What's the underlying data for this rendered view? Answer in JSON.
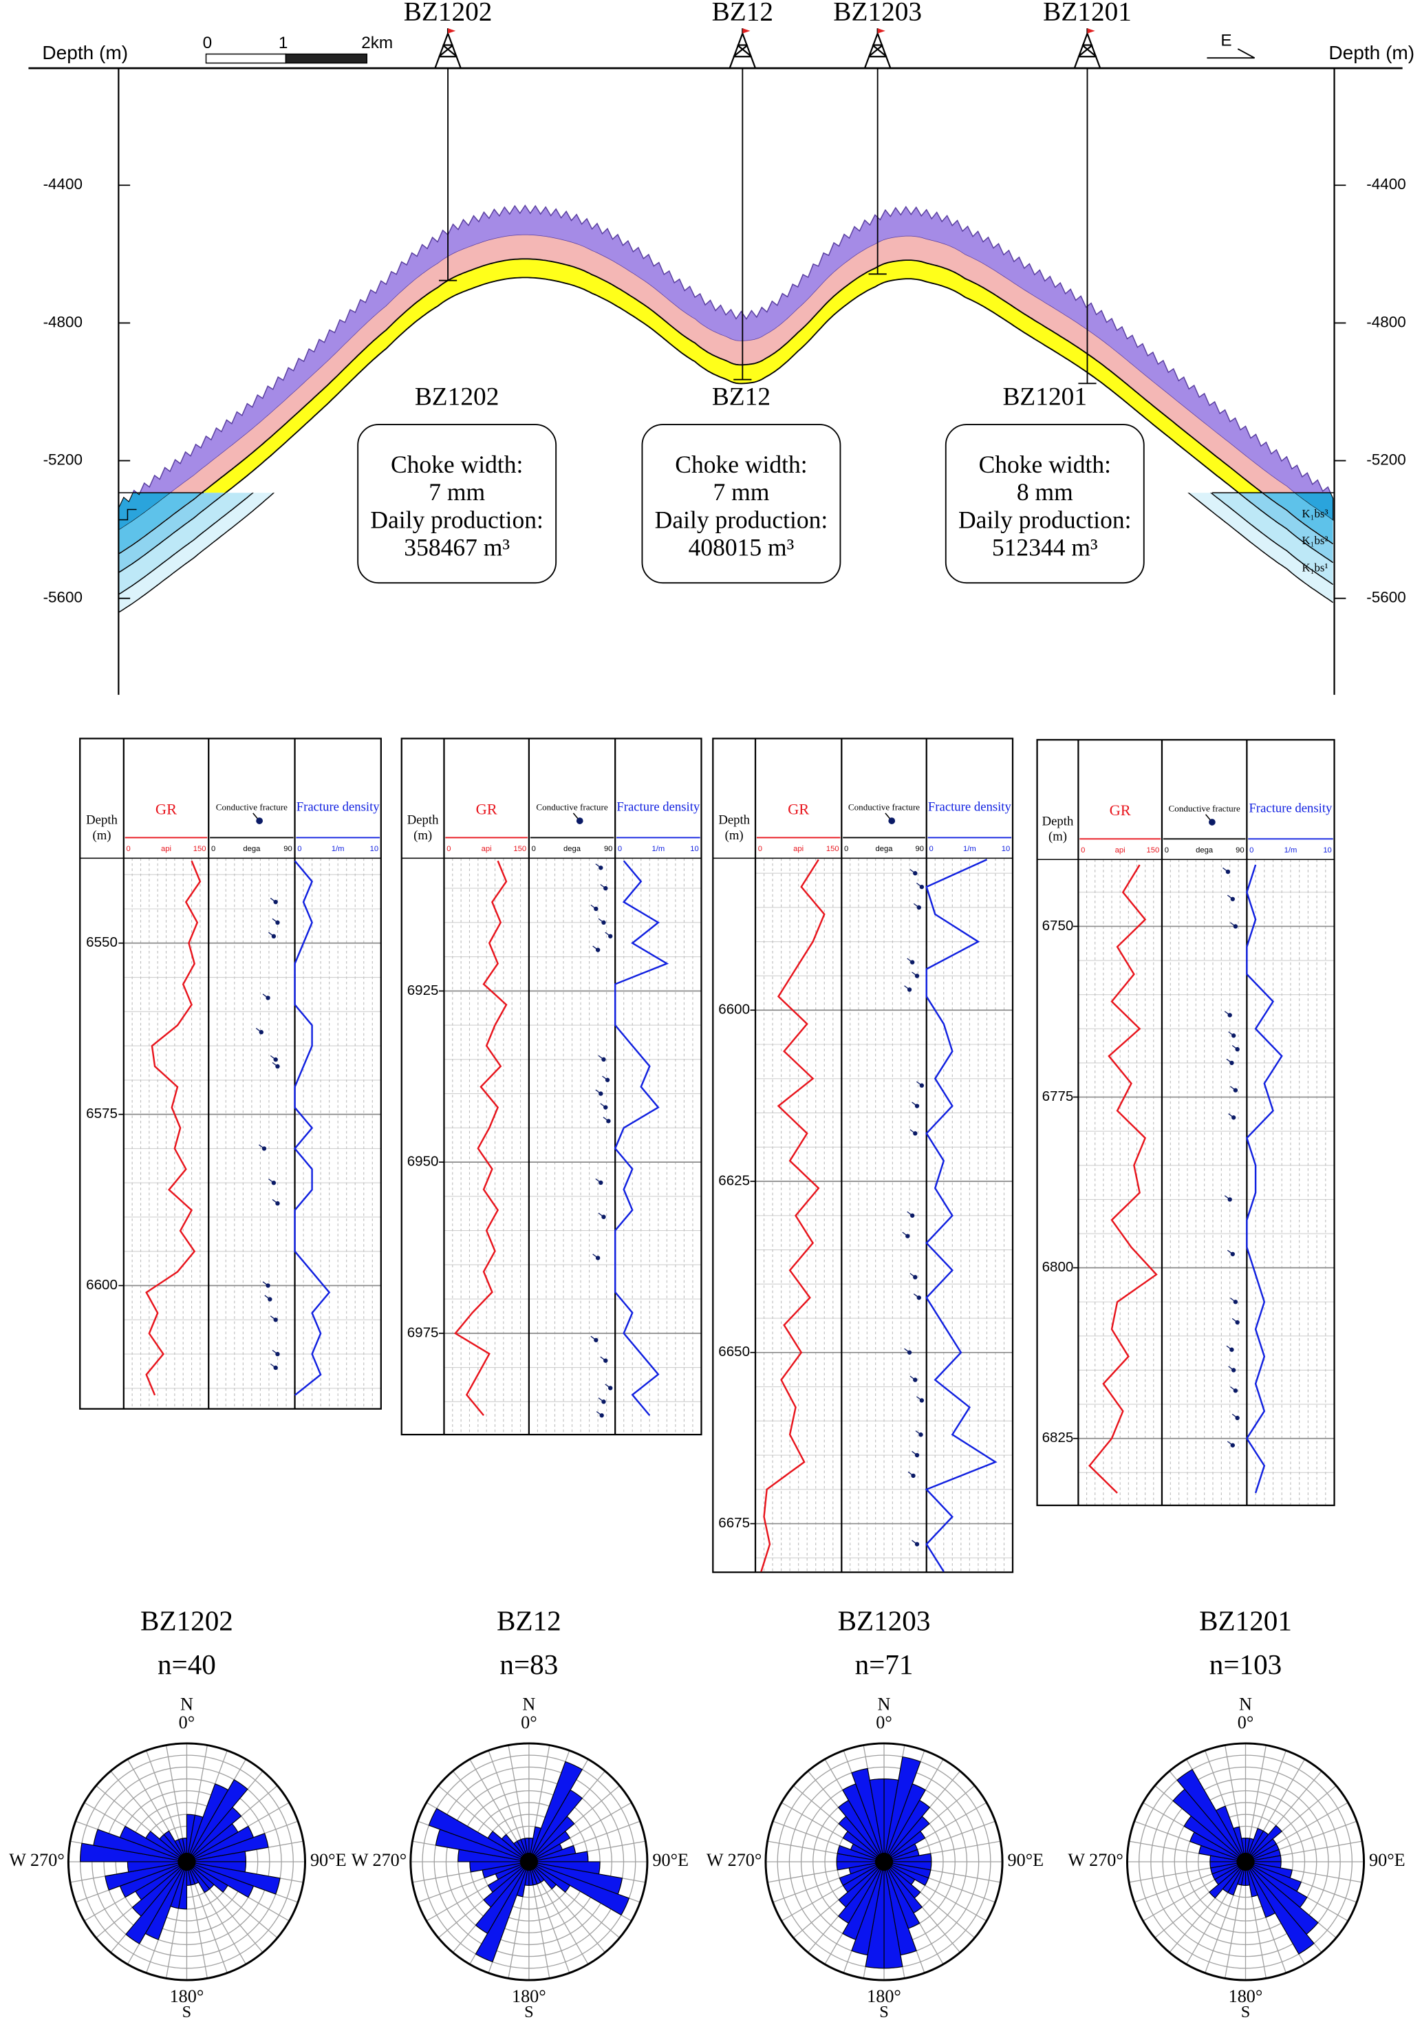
{
  "section": {
    "depth_label": "Depth (m)",
    "scale_labels": [
      "0",
      "1",
      "2km"
    ],
    "direction": "E",
    "wells": [
      "BZ1202",
      "BZ12",
      "BZ1203",
      "BZ1201"
    ],
    "ylim": [
      -4060,
      -5880
    ],
    "yticks": [
      -4400,
      -4800,
      -5200,
      -5600
    ],
    "layer_labels": [
      "K₁bs³",
      "K₁bs²",
      "K₁bs¹"
    ],
    "boxes": [
      {
        "well": "BZ1202",
        "choke_label": "Choke width:",
        "choke": "7 mm",
        "production_label": "Daily production:",
        "production": "358467 m³"
      },
      {
        "well": "BZ12",
        "choke_label": "Choke width:",
        "choke": "7 mm",
        "production_label": "Daily production:",
        "production": "408015 m³"
      },
      {
        "well": "BZ1201",
        "choke_label": "Choke width:",
        "choke": "8 mm",
        "production_label": "Daily production:",
        "production": "512344 m³"
      }
    ]
  },
  "log_header": {
    "depth": [
      "Depth",
      "(m)"
    ],
    "gr": "GR",
    "gr_unit": "api",
    "gr_range": [
      0,
      150
    ],
    "fracture": "Conductive fracture",
    "dip_unit": "dega",
    "dip_range": [
      0,
      90
    ],
    "density": "Fracture density",
    "density_unit": "1/m",
    "density_range": [
      0,
      10
    ]
  },
  "logs": [
    {
      "ylim": [
        6537.6,
        6618
      ],
      "yticks": [
        6550,
        6575,
        6600
      ],
      "depth": [
        6538,
        6541,
        6544,
        6547,
        6550,
        6553,
        6556,
        6559,
        6562,
        6565,
        6568,
        6571,
        6574,
        6577,
        6580,
        6583,
        6586,
        6589,
        6592,
        6595,
        6598,
        6601,
        6604,
        6607,
        6610,
        6613,
        6616
      ],
      "gr": [
        120,
        135,
        110,
        130,
        115,
        125,
        105,
        120,
        95,
        50,
        55,
        95,
        85,
        100,
        90,
        110,
        80,
        120,
        100,
        125,
        95,
        40,
        60,
        45,
        70,
        40,
        55
      ],
      "fracture_density": [
        0,
        2,
        1,
        2,
        1,
        0,
        0,
        0,
        2,
        2,
        1,
        0,
        0,
        2,
        0,
        2,
        2,
        0,
        0,
        0,
        2,
        4,
        2,
        3,
        2,
        3,
        0
      ],
      "fractures": {
        "depth": [
          6544,
          6547,
          6549,
          6558,
          6563,
          6567,
          6568,
          6580,
          6585,
          6588,
          6600,
          6602,
          6605,
          6610,
          6612
        ],
        "dip": [
          70,
          72,
          68,
          62,
          55,
          70,
          72,
          58,
          68,
          72,
          62,
          64,
          70,
          72,
          70
        ]
      }
    },
    {
      "ylim": [
        6905.6,
        6989.8
      ],
      "yticks": [
        6925,
        6950,
        6975
      ],
      "depth": [
        6906,
        6909,
        6912,
        6915,
        6918,
        6921,
        6924,
        6927,
        6930,
        6933,
        6936,
        6939,
        6942,
        6945,
        6948,
        6951,
        6954,
        6957,
        6960,
        6963,
        6966,
        6969,
        6972,
        6975,
        6978,
        6981,
        6984,
        6987
      ],
      "gr": [
        95,
        110,
        85,
        100,
        80,
        95,
        70,
        110,
        90,
        75,
        100,
        65,
        95,
        80,
        60,
        85,
        70,
        95,
        75,
        90,
        70,
        85,
        50,
        20,
        80,
        60,
        40,
        70
      ],
      "fracture_density": [
        1,
        3,
        1,
        5,
        2,
        6,
        0,
        0,
        0,
        2,
        4,
        3,
        5,
        1,
        0,
        2,
        1,
        2,
        0,
        0,
        0,
        0,
        2,
        1,
        3,
        5,
        2,
        4
      ],
      "fractures": {
        "depth": [
          6907,
          6910,
          6913,
          6915,
          6917,
          6919,
          6935,
          6938,
          6940,
          6942,
          6944,
          6953,
          6958,
          6964,
          6976,
          6979,
          6983,
          6985,
          6987
        ],
        "dip": [
          75,
          80,
          70,
          78,
          85,
          72,
          78,
          82,
          75,
          80,
          83,
          75,
          78,
          72,
          70,
          80,
          85,
          78,
          76
        ]
      }
    },
    {
      "ylim": [
        6577.8,
        6682.1
      ],
      "yticks": [
        6600,
        6625,
        6650,
        6675
      ],
      "depth": [
        6578,
        6582,
        6586,
        6590,
        6594,
        6598,
        6602,
        6606,
        6610,
        6614,
        6618,
        6622,
        6626,
        6630,
        6634,
        6638,
        6642,
        6646,
        6650,
        6654,
        6658,
        6662,
        6666,
        6670,
        6674,
        6678,
        6682
      ],
      "gr": [
        110,
        80,
        120,
        100,
        70,
        40,
        90,
        50,
        100,
        40,
        90,
        60,
        110,
        70,
        100,
        60,
        95,
        50,
        80,
        45,
        70,
        60,
        85,
        20,
        15,
        25,
        10
      ],
      "fracture_density": [
        7,
        0,
        1,
        6,
        0,
        0,
        2,
        3,
        1,
        3,
        0,
        2,
        1,
        3,
        0,
        3,
        0,
        2,
        4,
        1,
        5,
        3,
        8,
        0,
        3,
        0,
        2
      ],
      "fractures": {
        "depth": [
          6580,
          6582,
          6585,
          6593,
          6595,
          6597,
          6611,
          6614,
          6618,
          6630,
          6633,
          6639,
          6642,
          6650,
          6654,
          6657,
          6662,
          6665,
          6668,
          6678
        ],
        "dip": [
          78,
          85,
          82,
          75,
          80,
          72,
          85,
          80,
          78,
          75,
          70,
          78,
          82,
          72,
          78,
          85,
          84,
          80,
          76,
          80
        ]
      }
    },
    {
      "ylim": [
        6740.2,
        6834.8
      ],
      "yticks": [
        6750,
        6775,
        6800,
        6825
      ],
      "depth": [
        6741,
        6745,
        6749,
        6753,
        6757,
        6761,
        6765,
        6769,
        6773,
        6777,
        6781,
        6785,
        6789,
        6793,
        6797,
        6801,
        6805,
        6809,
        6813,
        6817,
        6821,
        6825,
        6829,
        6833
      ],
      "gr": [
        110,
        80,
        120,
        70,
        100,
        60,
        110,
        55,
        95,
        70,
        120,
        100,
        110,
        60,
        95,
        140,
        70,
        60,
        90,
        45,
        80,
        60,
        20,
        70
      ],
      "fracture_density": [
        1,
        0,
        1,
        0,
        0,
        3,
        1,
        4,
        2,
        3,
        0,
        1,
        1,
        0,
        0,
        1,
        2,
        1,
        2,
        1,
        2,
        0,
        2,
        1
      ],
      "fractures": {
        "depth": [
          6742,
          6746,
          6750,
          6763,
          6766,
          6768,
          6770,
          6774,
          6778,
          6790,
          6798,
          6805,
          6808,
          6812,
          6815,
          6818,
          6822,
          6826
        ],
        "dip": [
          70,
          75,
          78,
          72,
          76,
          80,
          74,
          78,
          76,
          72,
          75,
          78,
          80,
          74,
          76,
          78,
          80,
          75
        ]
      }
    }
  ],
  "rose_labels": {
    "north": "N",
    "zero": "0°",
    "east": "90°E",
    "south_deg": "180°",
    "south": "S",
    "west": "W 270°"
  },
  "rose_rlim": [
    0,
    10
  ],
  "roses": [
    {
      "title": "BZ1202",
      "n": "n=40",
      "values": [
        4,
        4,
        7,
        8,
        6,
        5,
        6,
        7,
        5,
        5,
        8,
        6,
        4,
        3,
        3,
        2,
        2,
        2,
        4,
        4,
        7,
        8,
        6,
        5,
        6,
        7,
        5,
        9,
        8,
        6,
        4,
        3,
        3,
        2,
        2,
        2
      ]
    },
    {
      "title": "BZ12",
      "n": "n=83",
      "values": [
        2,
        3,
        9,
        7,
        5,
        4,
        3,
        4,
        5,
        6,
        8,
        9,
        4,
        3,
        2,
        2,
        2,
        2,
        2,
        3,
        9,
        7,
        5,
        4,
        3,
        4,
        5,
        6,
        8,
        9,
        4,
        3,
        2,
        2,
        2,
        2
      ]
    },
    {
      "title": "BZ1203",
      "n": "n=71",
      "values": [
        7,
        9,
        7,
        6,
        5,
        4,
        3,
        3,
        4,
        4,
        4,
        4,
        3,
        4,
        5,
        6,
        8,
        9,
        9,
        8,
        7,
        6,
        5,
        4,
        4,
        3,
        4,
        4,
        4,
        3,
        4,
        5,
        6,
        7,
        8,
        7
      ]
    },
    {
      "title": "BZ1201",
      "n": "n=103",
      "values": [
        2,
        2,
        3,
        3,
        4,
        3,
        3,
        3,
        3,
        3,
        4,
        5,
        6,
        8,
        9,
        5,
        3,
        2,
        2,
        2,
        3,
        3,
        4,
        3,
        3,
        3,
        3,
        3,
        4,
        5,
        6,
        8,
        9,
        5,
        3,
        2
      ]
    }
  ]
}
